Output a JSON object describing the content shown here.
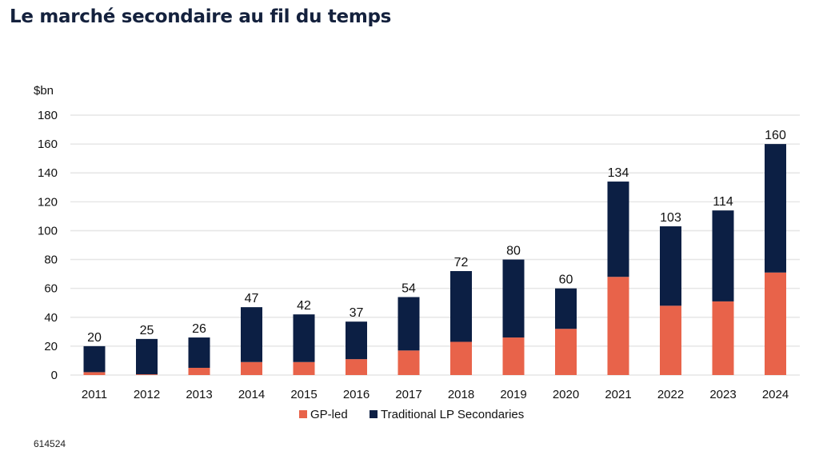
{
  "title": "Le marché secondaire au fil du temps",
  "footnote": "614524",
  "colors": {
    "gp_led": "#e8634a",
    "traditional": "#0c1f44",
    "grid": "#e6e6e6"
  },
  "chart_data": {
    "type": "bar",
    "stacked": true,
    "ylabel": "$bn",
    "ylim": [
      0,
      180
    ],
    "yticks": [
      0,
      20,
      40,
      60,
      80,
      100,
      120,
      140,
      160,
      180
    ],
    "grid": true,
    "legend_position": "bottom",
    "categories": [
      "2011",
      "2012",
      "2013",
      "2014",
      "2015",
      "2016",
      "2017",
      "2018",
      "2019",
      "2020",
      "2021",
      "2022",
      "2023",
      "2024"
    ],
    "totals": [
      20,
      25,
      26,
      47,
      42,
      37,
      54,
      72,
      80,
      60,
      134,
      103,
      114,
      160
    ],
    "series": [
      {
        "name": "GP-led",
        "values": [
          2,
          0.5,
          5,
          9,
          9,
          11,
          17,
          23,
          26,
          32,
          68,
          48,
          51,
          71
        ]
      },
      {
        "name": "Traditional LP Secondaries",
        "values": [
          18,
          24.5,
          21,
          38,
          33,
          26,
          37,
          49,
          54,
          28,
          66,
          55,
          63,
          89
        ]
      }
    ]
  }
}
